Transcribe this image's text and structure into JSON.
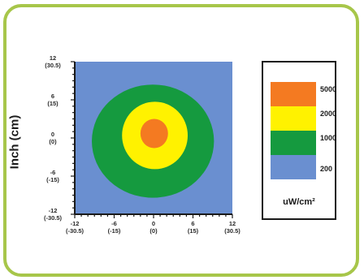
{
  "chart_data": {
    "type": "heatmap",
    "ylabel": "Inch (cm)",
    "xlim": [
      -12,
      12
    ],
    "ylim": [
      -12,
      12
    ],
    "x_ticks": [
      {
        "value": -12,
        "label": "-12",
        "sub": "(-30.5)"
      },
      {
        "value": -6,
        "label": "-6",
        "sub": "(-15)"
      },
      {
        "value": 0,
        "label": "0",
        "sub": "(0)"
      },
      {
        "value": 6,
        "label": "6",
        "sub": "(15)"
      },
      {
        "value": 12,
        "label": "12",
        "sub": "(30.5)"
      }
    ],
    "y_ticks": [
      {
        "value": 12,
        "label": "12",
        "sub": "(30.5)"
      },
      {
        "value": 6,
        "label": "6",
        "sub": "(15)"
      },
      {
        "value": 0,
        "label": "0",
        "sub": "(0)"
      },
      {
        "value": -6,
        "label": "-6",
        "sub": "(-15)"
      },
      {
        "value": -12,
        "label": "-12",
        "sub": "(-30.5)"
      }
    ],
    "levels": [
      {
        "value": "5000",
        "color": "#f47a21"
      },
      {
        "value": "2000",
        "color": "#fff200"
      },
      {
        "value": "1000",
        "color": "#159a3f"
      },
      {
        "value": "200",
        "color": "#6a8fd0"
      }
    ],
    "contours": [
      {
        "level": "1000",
        "center": [
          -0.1,
          -0.5
        ],
        "rx": 9.3,
        "ry": 8.9
      },
      {
        "level": "2000",
        "center": [
          0.2,
          0.4
        ],
        "rx": 5.0,
        "ry": 5.3
      },
      {
        "level": "5000",
        "center": [
          0.1,
          0.7
        ],
        "rx": 2.1,
        "ry": 2.3
      }
    ],
    "colorbar_unit": "uW/cm²"
  }
}
